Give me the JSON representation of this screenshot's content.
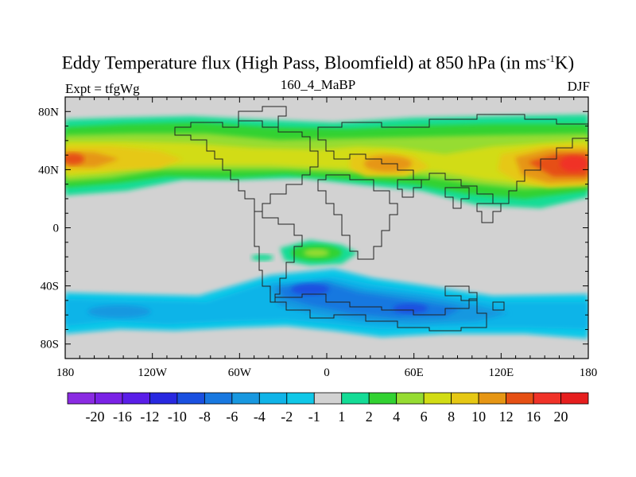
{
  "title_main": "Eddy Temperature flux (High Pass, Bloomfield) at 850 hPa (in ms",
  "title_sup": "-1",
  "title_end": "K)",
  "experiment": "Expt = tfgWg",
  "subtitle": "160_4_MaBP",
  "season": "DJF",
  "lat_labels": [
    "80N",
    "40N",
    "0",
    "40S",
    "80S"
  ],
  "lon_labels": [
    "180",
    "120W",
    "60W",
    "0",
    "60E",
    "120E",
    "180"
  ],
  "colorbar": {
    "labels": [
      "-20",
      "-16",
      "-12",
      "-10",
      "-8",
      "-6",
      "-4",
      "-2",
      "-1",
      "1",
      "2",
      "4",
      "6",
      "8",
      "10",
      "12",
      "16",
      "20"
    ],
    "colors": [
      "#8a2be2",
      "#7a22e6",
      "#5a1ee8",
      "#2828e0",
      "#1a50e0",
      "#1878e0",
      "#1898e0",
      "#10b4e8",
      "#10c8e8",
      "#d2d2d2",
      "#14dc96",
      "#32d232",
      "#96dc32",
      "#d2dc14",
      "#e6c814",
      "#e69614",
      "#e65014",
      "#f03228",
      "#e61e1e"
    ]
  },
  "map": {
    "background_color": "#d2d2d2",
    "lat_range": [
      -90,
      90
    ],
    "lon_range": [
      -180,
      180
    ]
  }
}
